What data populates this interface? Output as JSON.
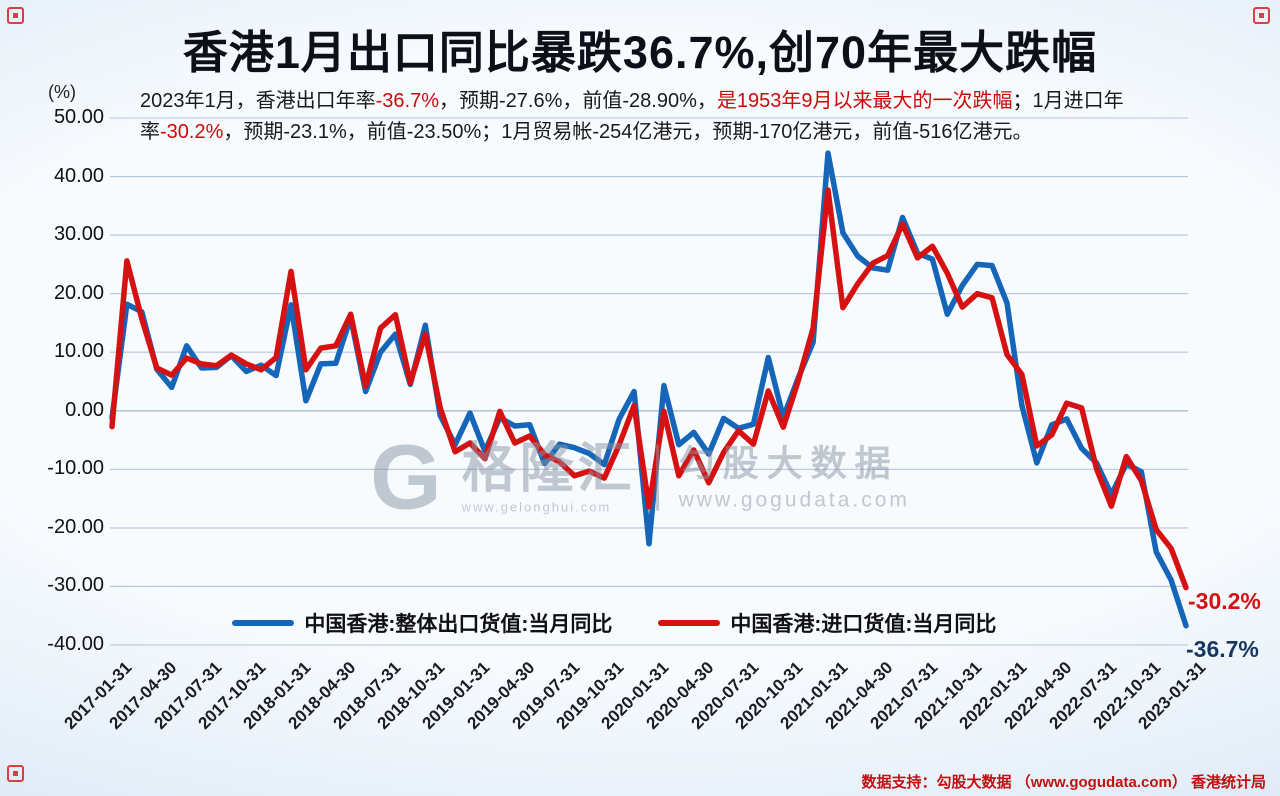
{
  "title": {
    "text": "香港1月出口同比暴跌36.7%,创70年最大跌幅"
  },
  "subtitle": {
    "segments": [
      {
        "text": "2023年1月，香港出口年率",
        "highlight": false
      },
      {
        "text": "-36.7%",
        "highlight": true
      },
      {
        "text": "，预期-27.6%，前值-28.90%，",
        "highlight": false
      },
      {
        "text": "是1953年9月以来最大的一次跌幅",
        "highlight": true
      },
      {
        "text": "；1月进口年率",
        "highlight": false
      },
      {
        "text": "-30.2%",
        "highlight": true
      },
      {
        "text": "，预期-23.1%，前值-23.50%；1月贸易帐-254亿港元，预期-170亿港元，前值-516亿港元。",
        "highlight": false
      }
    ]
  },
  "chart_data": {
    "type": "line",
    "title": "香港1月出口同比暴跌36.7%,创70年最大跌幅",
    "unit_label": "(%)",
    "x_start": "2017-01-31",
    "x_frequency": "monthly",
    "n_points": 73,
    "x_tick_every": 3,
    "x_tick_labels": [
      "2017-01-31",
      "2017-04-30",
      "2017-07-31",
      "2017-10-31",
      "2018-01-31",
      "2018-04-30",
      "2018-07-31",
      "2018-10-31",
      "2019-01-31",
      "2019-04-30",
      "2019-07-31",
      "2019-10-31",
      "2020-01-31",
      "2020-04-30",
      "2020-07-31",
      "2020-10-31",
      "2021-01-31",
      "2021-04-30",
      "2021-07-31",
      "2021-10-31",
      "2022-01-31",
      "2022-04-30",
      "2022-07-31",
      "2022-10-31",
      "2023-01-31"
    ],
    "ylim": [
      -40,
      50
    ],
    "y_ticks": [
      50,
      40,
      30,
      20,
      10,
      0,
      -10,
      -20,
      -30,
      -40
    ],
    "y_tick_labels": [
      "50.00",
      "40.00",
      "30.00",
      "20.00",
      "10.00",
      "0.00",
      "-10.00",
      "-20.00",
      "-30.00",
      "-40.00"
    ],
    "grid": true,
    "legend_position": "bottom-inside",
    "series": [
      {
        "name": "中国香港:整体出口货值:当月同比",
        "color": "#1565b8",
        "values": [
          -1.2,
          18.2,
          16.9,
          7.1,
          4.0,
          11.1,
          7.3,
          7.4,
          9.4,
          6.7,
          7.8,
          6.0,
          18.1,
          1.7,
          8.0,
          8.1,
          15.9,
          3.3,
          10.0,
          13.1,
          4.5,
          14.6,
          -0.8,
          -5.8,
          -0.4,
          -6.9,
          -1.2,
          -2.6,
          -2.4,
          -9.0,
          -5.7,
          -6.3,
          -7.3,
          -9.2,
          -1.4,
          3.3,
          -22.7,
          4.3,
          -5.8,
          -3.7,
          -7.4,
          -1.3,
          -3.0,
          -2.3,
          9.1,
          -1.1,
          5.6,
          11.7,
          44.0,
          30.4,
          26.4,
          24.4,
          24.0,
          33.0,
          26.9,
          25.9,
          16.5,
          21.4,
          25.0,
          24.8,
          18.4,
          0.9,
          -8.9,
          -2.4,
          -1.4,
          -6.4,
          -8.9,
          -14.3,
          -9.1,
          -10.4,
          -24.1,
          -28.9,
          -36.7
        ]
      },
      {
        "name": "中国香港:进口货值:当月同比",
        "color": "#d61111",
        "values": [
          -2.7,
          25.6,
          15.7,
          7.3,
          6.1,
          9.0,
          8.0,
          7.7,
          9.5,
          8.0,
          7.0,
          9.1,
          23.8,
          7.0,
          10.7,
          11.1,
          16.5,
          4.2,
          14.1,
          16.4,
          4.8,
          13.1,
          0.5,
          -7.0,
          -5.5,
          -8.2,
          -0.1,
          -5.5,
          -4.3,
          -7.5,
          -8.7,
          -11.1,
          -10.3,
          -11.5,
          -5.8,
          0.9,
          -16.4,
          -0.1,
          -11.1,
          -6.7,
          -12.3,
          -7.1,
          -3.4,
          -5.7,
          3.4,
          -2.8,
          5.1,
          14.1,
          37.7,
          17.6,
          21.7,
          25.2,
          26.5,
          31.9,
          26.1,
          28.1,
          23.5,
          17.7,
          20.0,
          19.3,
          9.6,
          6.2,
          -6.0,
          -4.1,
          1.3,
          0.5,
          -9.9,
          -16.3,
          -7.8,
          -11.9,
          -20.3,
          -23.5,
          -30.2
        ]
      }
    ],
    "annotations": [
      {
        "text": "-30.2%",
        "series": "进口",
        "color": "#d61111"
      },
      {
        "text": "-36.7%",
        "series": "出口",
        "color": "#16365c"
      }
    ]
  },
  "watermark": {
    "logo_letter": "G",
    "brand": "格隆汇",
    "brand_url": "www.gelonghui.com",
    "partner": "勾股大数据",
    "partner_url": "www.gogudata.com"
  },
  "footer": {
    "text": "数据支持：勾股大数据 （www.gogudata.com） 香港统计局"
  }
}
